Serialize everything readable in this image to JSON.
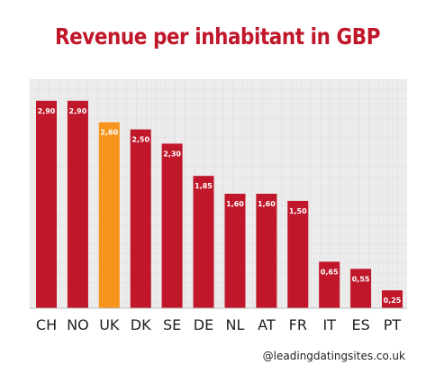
{
  "title": "Revenue per inhabitant in GBP",
  "credit": "@leadingdatingsites.co.uk",
  "colors": {
    "bar": "#c0172a",
    "highlight": "#f7941d",
    "title": "#c0172a",
    "grid": "#d0d0d0",
    "plot_background": "#ececec"
  },
  "chart_data": {
    "type": "bar",
    "title": "Revenue per inhabitant in GBP",
    "categories": [
      "CH",
      "NO",
      "UK",
      "DK",
      "SE",
      "DE",
      "NL",
      "AT",
      "FR",
      "IT",
      "ES",
      "PT"
    ],
    "values": [
      2.9,
      2.9,
      2.6,
      2.5,
      2.3,
      1.85,
      1.6,
      1.6,
      1.5,
      0.65,
      0.55,
      0.25
    ],
    "labels": [
      "2,90",
      "2,90",
      "2,60",
      "2,50",
      "2,30",
      "1,85",
      "1,60",
      "1,60",
      "1,50",
      "0,65",
      "0,55",
      "0,25"
    ],
    "highlight_category": "UK",
    "xlabel": "",
    "ylabel": "",
    "ylim": [
      0,
      3.2
    ],
    "grid": true,
    "legend": "none"
  }
}
